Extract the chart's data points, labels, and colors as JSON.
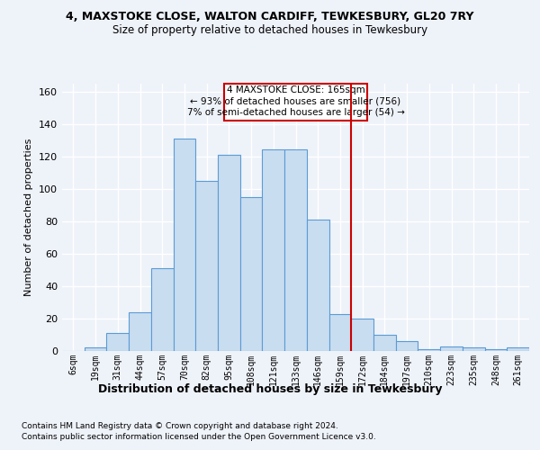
{
  "title1": "4, MAXSTOKE CLOSE, WALTON CARDIFF, TEWKESBURY, GL20 7RY",
  "title2": "Size of property relative to detached houses in Tewkesbury",
  "xlabel": "Distribution of detached houses by size in Tewkesbury",
  "ylabel": "Number of detached properties",
  "bar_labels": [
    "6sqm",
    "19sqm",
    "31sqm",
    "44sqm",
    "57sqm",
    "70sqm",
    "82sqm",
    "95sqm",
    "108sqm",
    "121sqm",
    "133sqm",
    "146sqm",
    "159sqm",
    "172sqm",
    "184sqm",
    "197sqm",
    "210sqm",
    "223sqm",
    "235sqm",
    "248sqm",
    "261sqm"
  ],
  "bar_values": [
    0,
    2,
    11,
    24,
    51,
    131,
    105,
    121,
    95,
    124,
    124,
    81,
    23,
    20,
    10,
    6,
    1,
    3,
    2,
    1,
    2
  ],
  "bar_color": "#c9ddf0",
  "bar_edge_color": "#5b9bd5",
  "ylim": [
    0,
    165
  ],
  "yticks": [
    0,
    20,
    40,
    60,
    80,
    100,
    120,
    140,
    160
  ],
  "vline_x_index": 12.5,
  "vline_color": "#cc0000",
  "annotation_title": "4 MAXSTOKE CLOSE: 165sqm",
  "annotation_line2": "← 93% of detached houses are smaller (756)",
  "annotation_line3": "7% of semi-detached houses are larger (54) →",
  "annotation_box_color": "#cc0000",
  "footer1": "Contains HM Land Registry data © Crown copyright and database right 2024.",
  "footer2": "Contains public sector information licensed under the Open Government Licence v3.0.",
  "background_color": "#eef2f9",
  "grid_color": "#ffffff"
}
